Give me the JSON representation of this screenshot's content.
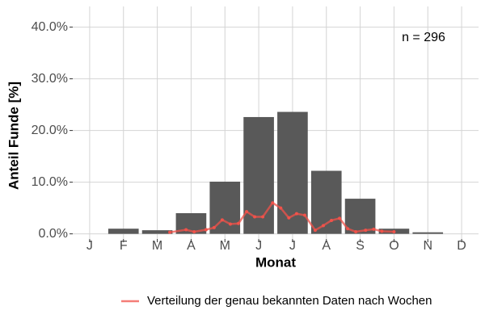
{
  "chart_data": {
    "type": "bar",
    "annotation": "n = 296",
    "x_label": "Monat",
    "y_label": "Anteil Funde [%]",
    "categories": [
      "J",
      "F",
      "M",
      "A",
      "M",
      "J",
      "J",
      "A",
      "S",
      "O",
      "N",
      "D"
    ],
    "values": [
      0,
      1.0,
      0.7,
      4.0,
      10.1,
      22.6,
      23.6,
      12.2,
      6.8,
      1.0,
      0.3,
      0
    ],
    "color": "#595959",
    "xlim": [
      0.5,
      12.5
    ],
    "ylim": [
      -1,
      44
    ],
    "yticks": [
      {
        "value": 0,
        "label": "0.0%"
      },
      {
        "value": 10,
        "label": "10.0%"
      },
      {
        "value": 20,
        "label": "20.0%"
      },
      {
        "value": 30,
        "label": "30.0%"
      },
      {
        "value": 40,
        "label": "40.0%"
      }
    ],
    "grid": true,
    "legend_position": "bottom",
    "series": [
      {
        "name": "Verteilung der genau bekannten Daten nach Wochen",
        "type": "line",
        "color": "#f0524a",
        "x": [
          3.37,
          3.85,
          4.09,
          4.44,
          4.68,
          4.92,
          5.16,
          5.4,
          5.64,
          5.88,
          6.12,
          6.41,
          6.65,
          6.89,
          7.12,
          7.36,
          7.67,
          7.91,
          8.15,
          8.39,
          8.63,
          8.87,
          9.16,
          9.4,
          9.64,
          10.0
        ],
        "values": [
          0.3,
          0.8,
          0.4,
          0.8,
          1.2,
          2.7,
          1.9,
          2.0,
          4.3,
          3.3,
          3.3,
          6.0,
          5.0,
          3.1,
          3.9,
          3.6,
          0.7,
          1.6,
          2.6,
          3.0,
          1.0,
          0.4,
          0.7,
          0.9,
          0.5,
          0.4
        ]
      }
    ]
  }
}
